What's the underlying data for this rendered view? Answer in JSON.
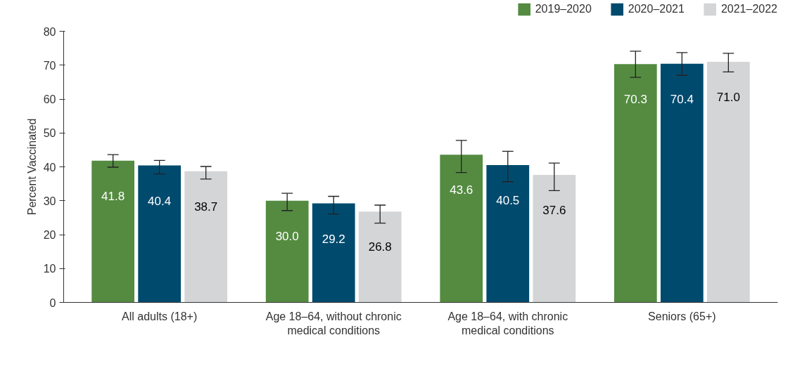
{
  "chart_data": {
    "type": "bar",
    "ylabel": "Percent Vaccinated",
    "categories": [
      "All adults (18+)",
      "Age 18–64, without chronic medical conditions",
      "Age 18–64, with chronic medical conditions",
      "Seniors (65+)"
    ],
    "series": [
      {
        "name": "2019–2020",
        "color": "#548b41",
        "values": [
          41.8,
          30.0,
          43.6,
          70.3
        ],
        "value_labels": [
          "41.8",
          "30.0",
          "43.6",
          "70.3"
        ],
        "errors": [
          [
            39.9,
            43.6
          ],
          [
            27.1,
            32.2
          ],
          [
            38.3,
            47.8
          ],
          [
            66.4,
            74.1
          ]
        ]
      },
      {
        "name": "2020–2021",
        "color": "#004a6e",
        "values": [
          40.4,
          29.2,
          40.5,
          70.4
        ],
        "value_labels": [
          "40.4",
          "29.2",
          "40.5",
          "70.4"
        ],
        "errors": [
          [
            37.9,
            41.9
          ],
          [
            26.1,
            31.3
          ],
          [
            35.6,
            44.6
          ],
          [
            67.0,
            73.7
          ]
        ]
      },
      {
        "name": "2021–2022",
        "color": "#d4d5d7",
        "values": [
          38.7,
          26.8,
          37.6,
          71.0
        ],
        "value_labels": [
          "38.7",
          "26.8",
          "37.6",
          "71.0"
        ],
        "errors": [
          [
            36.4,
            40.1
          ],
          [
            23.4,
            28.7
          ],
          [
            33.0,
            41.1
          ],
          [
            68.0,
            73.5
          ]
        ]
      }
    ],
    "ylim": [
      0,
      80
    ],
    "yticks": [
      0,
      10,
      20,
      30,
      40,
      50,
      60,
      70,
      80
    ],
    "legend": "top right",
    "grid": false
  }
}
